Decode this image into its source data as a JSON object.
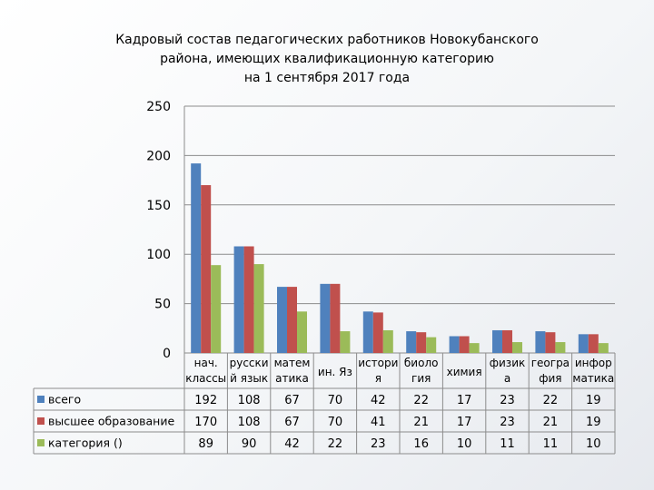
{
  "chart_data": {
    "type": "bar",
    "title_lines": [
      "Кадровый состав педагогических работников Новокубанского",
      "района, имеющих квалификационную категорию",
      "на 1 сентября 2017 года"
    ],
    "categories": [
      [
        "нач.",
        "классы"
      ],
      [
        "русски",
        "й язык"
      ],
      [
        "матем",
        "атика"
      ],
      [
        "ин. Яз"
      ],
      [
        "истори",
        "я"
      ],
      [
        "биоло",
        "гия"
      ],
      [
        "химия"
      ],
      [
        "физик",
        "а"
      ],
      [
        "геогра",
        "фия"
      ],
      [
        "инфор",
        "матика"
      ]
    ],
    "series": [
      {
        "name": "всего",
        "color": "#4F81BD",
        "values": [
          192,
          108,
          67,
          70,
          42,
          22,
          17,
          23,
          22,
          19
        ]
      },
      {
        "name": "высшее образование",
        "color": "#C0504D",
        "values": [
          170,
          108,
          67,
          70,
          41,
          21,
          17,
          23,
          21,
          19
        ]
      },
      {
        "name": "категория ()",
        "color": "#9BBB59",
        "values": [
          89,
          90,
          42,
          22,
          23,
          16,
          10,
          11,
          11,
          10
        ]
      }
    ],
    "yticks": [
      0,
      50,
      100,
      150,
      200,
      250
    ],
    "ylim": [
      0,
      250
    ],
    "grid": true,
    "legend": "data-table"
  }
}
